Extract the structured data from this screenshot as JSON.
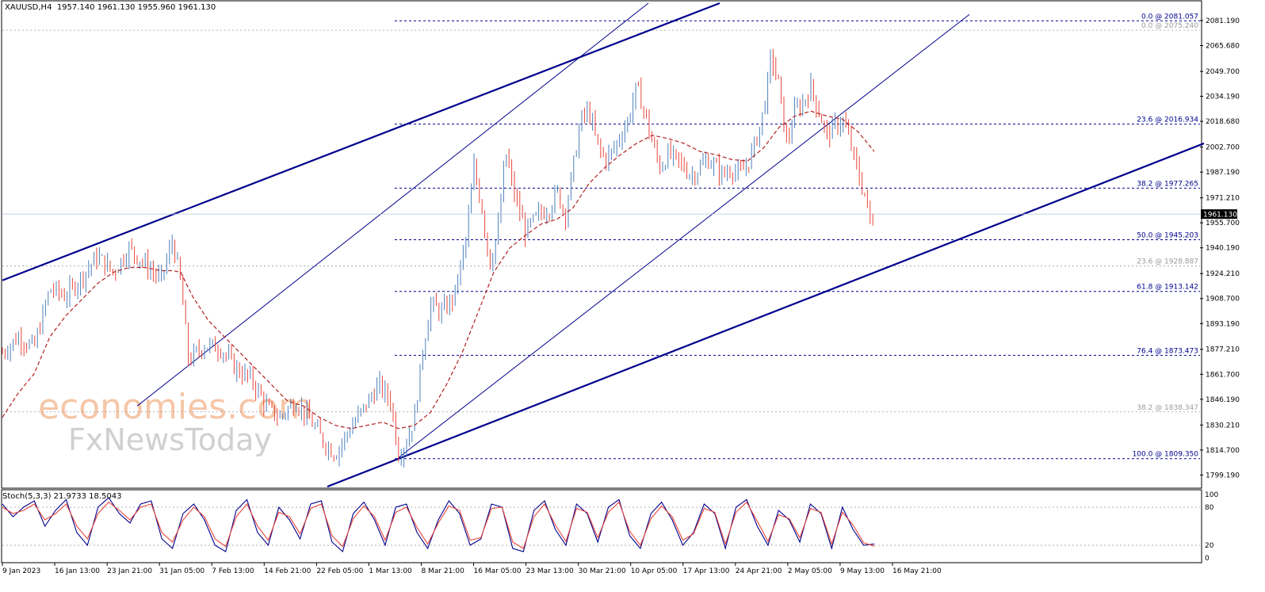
{
  "header": {
    "symbol": "XAUUSD,H4",
    "ohlc": "1957.140 1961.130 1955.960 1961.130"
  },
  "watermark": {
    "line1": "economies.com",
    "line2": "FxNewsToday"
  },
  "colors": {
    "bull": "#4f81bd",
    "bear": "#e8463c",
    "channel": "#00008b",
    "ma": "#b22222",
    "stoch_main": "#00008b",
    "stoch_signal": "#e8463c",
    "fib": "#00008b",
    "fib_faint": "#9a9a9a"
  },
  "chart_data": [
    {
      "type": "candlestick",
      "title": "XAUUSD,H4",
      "ylim": [
        1792,
        2093
      ],
      "y_ticks": [
        2081.19,
        2065.68,
        2049.7,
        2034.19,
        2018.68,
        2002.7,
        1987.19,
        1971.21,
        1955.7,
        1940.19,
        1924.21,
        1908.7,
        1893.19,
        1877.21,
        1861.7,
        1846.19,
        1830.21,
        1814.7,
        1799.19
      ],
      "y_tick_labels": [
        "2081.190",
        "2065.680",
        "2049.700",
        "2034.190",
        "2018.680",
        "2002.700",
        "1987.190",
        "1971.210",
        "1955.700",
        "1940.190",
        "1924.210",
        "1908.700",
        "1893.190",
        "1877.210",
        "1861.700",
        "1846.190",
        "1830.210",
        "1814.700",
        "1799.190"
      ],
      "x_tick_labels": [
        "9 Jan 2023",
        "16 Jan 13:00",
        "23 Jan 21:00",
        "31 Jan 05:00",
        "7 Feb 13:00",
        "14 Feb 21:00",
        "22 Feb 05:00",
        "1 Mar 13:00",
        "8 Mar 21:00",
        "16 Mar 05:00",
        "23 Mar 13:00",
        "30 Mar 21:00",
        "10 Apr 05:00",
        "17 Apr 13:00",
        "24 Apr 21:00",
        "2 May 05:00",
        "9 May 13:00",
        "16 May 21:00"
      ],
      "current_price": 1961.13,
      "current_price_label": "1961.130",
      "close_path": [
        [
          0,
          1875
        ],
        [
          20,
          1885
        ],
        [
          40,
          1878
        ],
        [
          60,
          1915
        ],
        [
          80,
          1910
        ],
        [
          100,
          1922
        ],
        [
          120,
          1935
        ],
        [
          140,
          1925
        ],
        [
          160,
          1940
        ],
        [
          180,
          1930
        ],
        [
          200,
          1920
        ],
        [
          215,
          1945
        ],
        [
          225,
          1918
        ],
        [
          235,
          1870
        ],
        [
          255,
          1880
        ],
        [
          275,
          1878
        ],
        [
          295,
          1865
        ],
        [
          315,
          1858
        ],
        [
          335,
          1840
        ],
        [
          350,
          1835
        ],
        [
          370,
          1845
        ],
        [
          390,
          1832
        ],
        [
          405,
          1820
        ],
        [
          420,
          1812
        ],
        [
          435,
          1825
        ],
        [
          455,
          1840
        ],
        [
          475,
          1855
        ],
        [
          490,
          1845
        ],
        [
          500,
          1812
        ],
        [
          510,
          1820
        ],
        [
          520,
          1835
        ],
        [
          530,
          1875
        ],
        [
          540,
          1905
        ],
        [
          555,
          1900
        ],
        [
          570,
          1910
        ],
        [
          585,
          1945
        ],
        [
          595,
          1990
        ],
        [
          605,
          1965
        ],
        [
          615,
          1930
        ],
        [
          625,
          1950
        ],
        [
          635,
          2000
        ],
        [
          645,
          1975
        ],
        [
          660,
          1950
        ],
        [
          675,
          1960
        ],
        [
          690,
          1965
        ],
        [
          700,
          1975
        ],
        [
          710,
          1960
        ],
        [
          720,
          1990
        ],
        [
          730,
          2020
        ],
        [
          740,
          2025
        ],
        [
          750,
          2005
        ],
        [
          760,
          1995
        ],
        [
          770,
          2000
        ],
        [
          780,
          2010
        ],
        [
          790,
          2020
        ],
        [
          800,
          2040
        ],
        [
          810,
          2025
        ],
        [
          820,
          2005
        ],
        [
          830,
          1990
        ],
        [
          840,
          1998
        ],
        [
          850,
          1995
        ],
        [
          860,
          1990
        ],
        [
          870,
          1985
        ],
        [
          880,
          1990
        ],
        [
          890,
          1995
        ],
        [
          900,
          1990
        ],
        [
          910,
          1985
        ],
        [
          920,
          1990
        ],
        [
          930,
          1985
        ],
        [
          940,
          1992
        ],
        [
          950,
          2005
        ],
        [
          958,
          2020
        ],
        [
          965,
          2040
        ],
        [
          970,
          2060
        ],
        [
          975,
          2050
        ],
        [
          980,
          2040
        ],
        [
          985,
          2020
        ],
        [
          990,
          2005
        ],
        [
          1000,
          2025
        ],
        [
          1010,
          2030
        ],
        [
          1020,
          2040
        ],
        [
          1030,
          2025
        ],
        [
          1040,
          2010
        ],
        [
          1050,
          2015
        ],
        [
          1060,
          2020
        ],
        [
          1070,
          2005
        ],
        [
          1080,
          1985
        ],
        [
          1090,
          1970
        ],
        [
          1095,
          1955
        ],
        [
          1100,
          1961
        ]
      ],
      "ma_path": [
        [
          0,
          1835
        ],
        [
          20,
          1850
        ],
        [
          40,
          1862
        ],
        [
          60,
          1885
        ],
        [
          80,
          1898
        ],
        [
          100,
          1908
        ],
        [
          120,
          1918
        ],
        [
          140,
          1925
        ],
        [
          160,
          1928
        ],
        [
          180,
          1928
        ],
        [
          200,
          1926
        ],
        [
          215,
          1926
        ],
        [
          225,
          1925
        ],
        [
          240,
          1910
        ],
        [
          260,
          1895
        ],
        [
          280,
          1885
        ],
        [
          300,
          1875
        ],
        [
          320,
          1865
        ],
        [
          340,
          1855
        ],
        [
          360,
          1845
        ],
        [
          380,
          1842
        ],
        [
          400,
          1835
        ],
        [
          420,
          1830
        ],
        [
          440,
          1828
        ],
        [
          460,
          1830
        ],
        [
          480,
          1832
        ],
        [
          500,
          1828
        ],
        [
          520,
          1830
        ],
        [
          540,
          1838
        ],
        [
          560,
          1855
        ],
        [
          580,
          1875
        ],
        [
          600,
          1900
        ],
        [
          620,
          1925
        ],
        [
          640,
          1940
        ],
        [
          660,
          1948
        ],
        [
          680,
          1955
        ],
        [
          700,
          1958
        ],
        [
          720,
          1965
        ],
        [
          740,
          1980
        ],
        [
          760,
          1990
        ],
        [
          780,
          1998
        ],
        [
          800,
          2005
        ],
        [
          820,
          2010
        ],
        [
          840,
          2008
        ],
        [
          860,
          2005
        ],
        [
          880,
          2000
        ],
        [
          900,
          1998
        ],
        [
          920,
          1995
        ],
        [
          940,
          1994
        ],
        [
          960,
          2002
        ],
        [
          980,
          2015
        ],
        [
          1000,
          2022
        ],
        [
          1020,
          2025
        ],
        [
          1040,
          2022
        ],
        [
          1060,
          2020
        ],
        [
          1080,
          2012
        ],
        [
          1100,
          2000
        ]
      ],
      "fib_levels": [
        {
          "price": 2081.057,
          "label": "0.0 @ 2081.057",
          "faint": false
        },
        {
          "price": 2075.24,
          "label": "0.0 @ 2075.240",
          "faint": true
        },
        {
          "price": 2016.934,
          "label": "23.6 @ 2016.934",
          "faint": false
        },
        {
          "price": 1977.265,
          "label": "38.2 @ 1977.265",
          "faint": false
        },
        {
          "price": 1945.203,
          "label": "50.0 @ 1945.203",
          "faint": false
        },
        {
          "price": 1928.887,
          "label": "23.6 @ 1928.887",
          "faint": true
        },
        {
          "price": 1913.142,
          "label": "61.8 @ 1913.142",
          "faint": false
        },
        {
          "price": 1873.473,
          "label": "76.4 @ 1873.473",
          "faint": false
        },
        {
          "price": 1838.347,
          "label": "38.2 @ 1838.347",
          "faint": true
        },
        {
          "price": 1809.35,
          "label": "100.0 @ 1809.350",
          "faint": false
        }
      ],
      "channel_lines": [
        {
          "p1": [
            0,
            1920
          ],
          "p2": [
            905,
            2092
          ],
          "bold": true
        },
        {
          "p1": [
            410,
            1792
          ],
          "p2": [
            1516,
            2005
          ],
          "bold": true
        },
        {
          "p1": [
            170,
            1842
          ],
          "p2": [
            815,
            2092
          ],
          "bold": false
        },
        {
          "p1": [
            500,
            1810
          ],
          "p2": [
            1220,
            2085
          ],
          "bold": false
        }
      ]
    },
    {
      "type": "line",
      "title": "Stoch(5,3,3)",
      "header": "Stoch(5,3,3) 21.9733 18.5043",
      "ylim": [
        0,
        100
      ],
      "y_ticks": [
        100,
        80,
        20,
        0
      ],
      "y_tick_labels": [
        "100",
        "80",
        "20",
        "0"
      ],
      "levels": [
        80,
        20
      ],
      "series": [
        {
          "role": "main",
          "values": [
            85,
            65,
            80,
            90,
            50,
            75,
            92,
            40,
            20,
            80,
            95,
            70,
            55,
            85,
            90,
            30,
            15,
            70,
            85,
            60,
            20,
            10,
            75,
            92,
            40,
            20,
            80,
            60,
            30,
            85,
            90,
            25,
            10,
            70,
            88,
            60,
            20,
            80,
            85,
            40,
            15,
            60,
            90,
            70,
            20,
            30,
            85,
            80,
            15,
            10,
            75,
            90,
            45,
            20,
            85,
            70,
            25,
            80,
            92,
            35,
            15,
            70,
            88,
            60,
            20,
            40,
            85,
            70,
            15,
            80,
            92,
            50,
            20,
            75,
            60,
            25,
            85,
            70,
            15,
            80,
            45,
            20,
            22
          ]
        },
        {
          "role": "signal",
          "values": [
            80,
            70,
            75,
            85,
            60,
            70,
            85,
            50,
            30,
            70,
            88,
            75,
            60,
            80,
            85,
            40,
            25,
            60,
            80,
            65,
            30,
            18,
            65,
            85,
            50,
            28,
            72,
            65,
            38,
            78,
            85,
            35,
            18,
            62,
            82,
            65,
            28,
            72,
            80,
            48,
            22,
            55,
            82,
            75,
            28,
            32,
            78,
            80,
            25,
            15,
            65,
            85,
            52,
            26,
            78,
            72,
            32,
            72,
            88,
            42,
            20,
            62,
            82,
            65,
            28,
            38,
            78,
            72,
            22,
            72,
            88,
            58,
            26,
            68,
            62,
            32,
            78,
            72,
            22,
            72,
            52,
            24,
            18.5
          ]
        }
      ]
    }
  ]
}
